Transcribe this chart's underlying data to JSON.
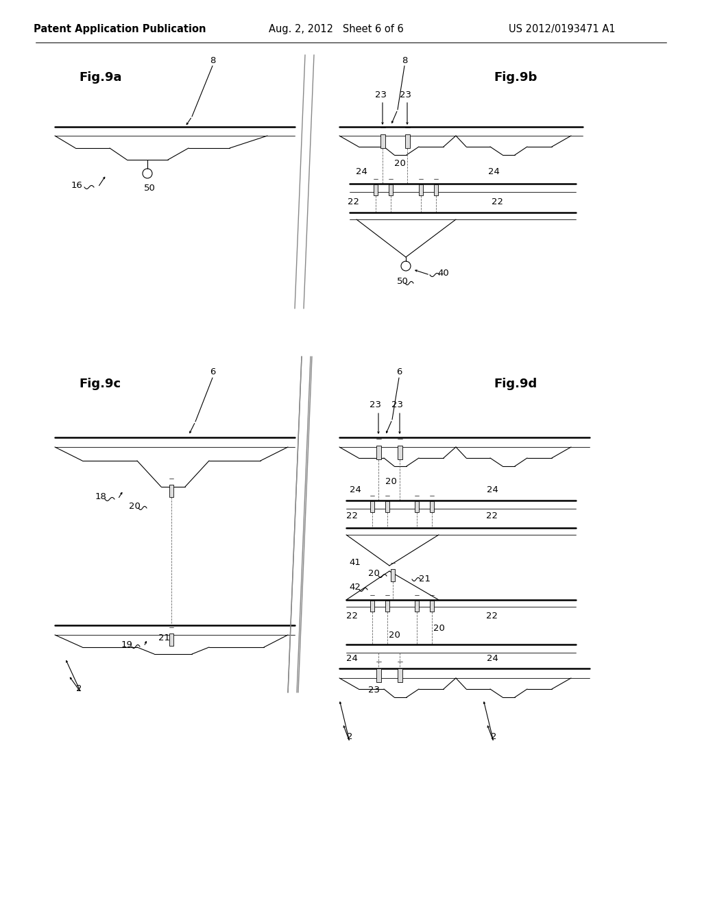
{
  "bg_color": "#ffffff",
  "line_color": "#000000",
  "header_left": "Patent Application Publication",
  "header_center": "Aug. 2, 2012   Sheet 6 of 6",
  "header_right": "US 2012/0193471 A1",
  "fig9a_label": "Fig.9a",
  "fig9b_label": "Fig.9b",
  "fig9c_label": "Fig.9c",
  "fig9d_label": "Fig.9d",
  "font_size_header": 10.5,
  "font_size_label": 13,
  "font_size_ref": 9.5
}
